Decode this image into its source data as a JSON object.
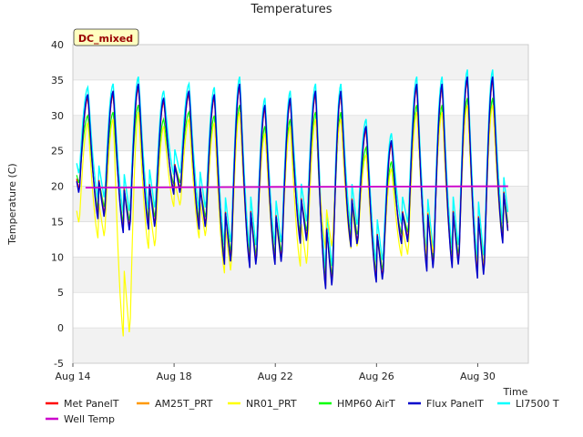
{
  "chart_data": {
    "type": "line",
    "title": "Temperatures",
    "xlabel": "Time",
    "ylabel": "Temperature (C)",
    "ylim": [
      -5,
      40
    ],
    "xlim": [
      0,
      18
    ],
    "yticks": [
      -5,
      0,
      5,
      10,
      15,
      20,
      25,
      30,
      35,
      40
    ],
    "xticks": [
      {
        "day": 0,
        "label": "Aug 14"
      },
      {
        "day": 4,
        "label": "Aug 18"
      },
      {
        "day": 8,
        "label": "Aug 22"
      },
      {
        "day": 12,
        "label": "Aug 26"
      },
      {
        "day": 16,
        "label": "Aug 30"
      }
    ],
    "grid": "horizontal bands",
    "badge": "DC_mixed",
    "legend_position": "bottom",
    "daily_extremes": {
      "days": [
        0,
        1,
        2,
        3,
        4,
        5,
        6,
        7,
        8,
        9,
        10,
        11,
        12,
        13,
        14,
        15,
        16,
        17
      ],
      "Met PanelT_max": [
        32.5,
        33,
        34,
        32,
        33,
        32.5,
        34,
        31,
        32,
        33,
        33,
        28,
        26,
        34,
        34,
        35,
        35,
        null
      ],
      "Met PanelT_min": [
        19,
        15.5,
        13.5,
        14,
        19,
        14,
        9,
        8.5,
        9,
        12,
        5.5,
        11.5,
        6.5,
        12,
        8,
        8.5,
        7,
        12
      ],
      "NR01_PRT_min": [
        14.5,
        12.5,
        -1.5,
        11,
        17,
        12.5,
        7.5,
        9,
        9,
        8.5,
        11,
        11,
        7,
        10,
        10,
        9,
        8,
        12
      ]
    },
    "series": [
      {
        "name": "Met PanelT",
        "color": "#ff0000"
      },
      {
        "name": "AM25T_PRT",
        "color": "#ff9900"
      },
      {
        "name": "NR01_PRT",
        "color": "#ffff00"
      },
      {
        "name": "HMP60 AirT",
        "color": "#00ff00"
      },
      {
        "name": "Flux PanelT",
        "color": "#0000cc"
      },
      {
        "name": "LI7500 T",
        "color": "#00ffff"
      },
      {
        "name": "Well Temp",
        "color": "#cc00cc"
      }
    ]
  }
}
